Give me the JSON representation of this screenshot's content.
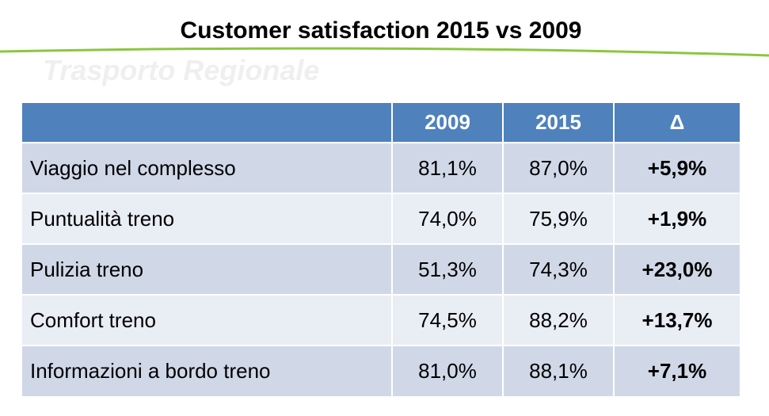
{
  "title": "Customer satisfaction 2015 vs 2009",
  "watermark": "Trasporto Regionale",
  "colors": {
    "header_bg": "#4f81bd",
    "row_odd": "#d0d8e8",
    "row_even": "#e9edf4",
    "accent_line": "#8cc63f"
  },
  "table": {
    "headers": [
      "",
      "2009",
      "2015",
      "Δ"
    ],
    "rows": [
      {
        "label": "Viaggio nel complesso",
        "y2009": "81,1%",
        "y2015": "87,0%",
        "delta": "+5,9%"
      },
      {
        "label": "Puntualità treno",
        "y2009": "74,0%",
        "y2015": "75,9%",
        "delta": "+1,9%"
      },
      {
        "label": "Pulizia treno",
        "y2009": "51,3%",
        "y2015": "74,3%",
        "delta": "+23,0%"
      },
      {
        "label": "Comfort treno",
        "y2009": "74,5%",
        "y2015": "88,2%",
        "delta": "+13,7%"
      },
      {
        "label": "Informazioni a bordo treno",
        "y2009": "81,0%",
        "y2015": "88,1%",
        "delta": "+7,1%"
      }
    ]
  }
}
